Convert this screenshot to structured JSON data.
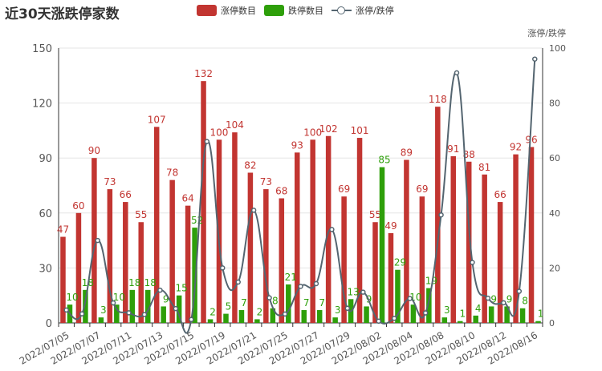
{
  "chart_data": {
    "type": "bar",
    "title": "近30天涨跌停家数",
    "ylabel_right": "涨停/跌停",
    "categories": [
      "2022/07/05",
      "2022/07/06",
      "2022/07/07",
      "2022/07/08",
      "2022/07/11",
      "2022/07/12",
      "2022/07/13",
      "2022/07/14",
      "2022/07/15",
      "2022/07/18",
      "2022/07/19",
      "2022/07/20",
      "2022/07/21",
      "2022/07/22",
      "2022/07/25",
      "2022/07/26",
      "2022/07/27",
      "2022/07/28",
      "2022/07/29",
      "2022/08/01",
      "2022/08/02",
      "2022/08/03",
      "2022/08/04",
      "2022/08/05",
      "2022/08/08",
      "2022/08/09",
      "2022/08/10",
      "2022/08/11",
      "2022/08/12",
      "2022/08/15",
      "2022/08/16"
    ],
    "xtick_labels": [
      "2022/07/05",
      "2022/07/07",
      "2022/07/11",
      "2022/07/13",
      "2022/07/15",
      "2022/07/19",
      "2022/07/21",
      "2022/07/25",
      "2022/07/27",
      "2022/07/29",
      "2022/08/02",
      "2022/08/04",
      "2022/08/08",
      "2022/08/10",
      "2022/08/12",
      "2022/08/16"
    ],
    "series": [
      {
        "name": "涨停数目",
        "type": "bar",
        "color": "#c23531",
        "values": [
          47,
          60,
          90,
          73,
          66,
          55,
          107,
          78,
          64,
          132,
          100,
          104,
          82,
          73,
          68,
          93,
          100,
          102,
          69,
          101,
          55,
          49,
          89,
          69,
          118,
          91,
          88,
          81,
          66,
          92,
          96
        ]
      },
      {
        "name": "跌停数目",
        "type": "bar",
        "color": "#2e9f0a",
        "values": [
          10,
          18,
          3,
          10,
          18,
          18,
          9,
          15,
          52,
          2,
          5,
          7,
          2,
          8,
          21,
          7,
          7,
          3,
          13,
          9,
          85,
          29,
          10,
          19,
          3,
          1,
          4,
          9,
          9,
          8,
          1
        ]
      },
      {
        "name": "涨停/跌停",
        "type": "line",
        "axis": "right",
        "color": "#546570",
        "values": [
          4.7,
          3.33,
          30,
          7.3,
          3.67,
          3.06,
          11.9,
          5.2,
          1.23,
          66,
          20,
          14.86,
          41,
          9.13,
          3.24,
          13.3,
          14.3,
          34,
          5.31,
          11.2,
          0.65,
          1.69,
          8.9,
          3.63,
          39.3,
          91,
          22,
          9,
          7.33,
          11.5,
          96
        ]
      }
    ],
    "y_left": {
      "ylim": [
        0,
        150
      ],
      "ticks": [
        0,
        30,
        60,
        90,
        120,
        150
      ]
    },
    "y_right": {
      "ylim": [
        0,
        100
      ],
      "ticks": [
        0,
        20,
        40,
        60,
        80,
        100
      ]
    },
    "legend_position": "top-center",
    "grid": "horizontal"
  }
}
